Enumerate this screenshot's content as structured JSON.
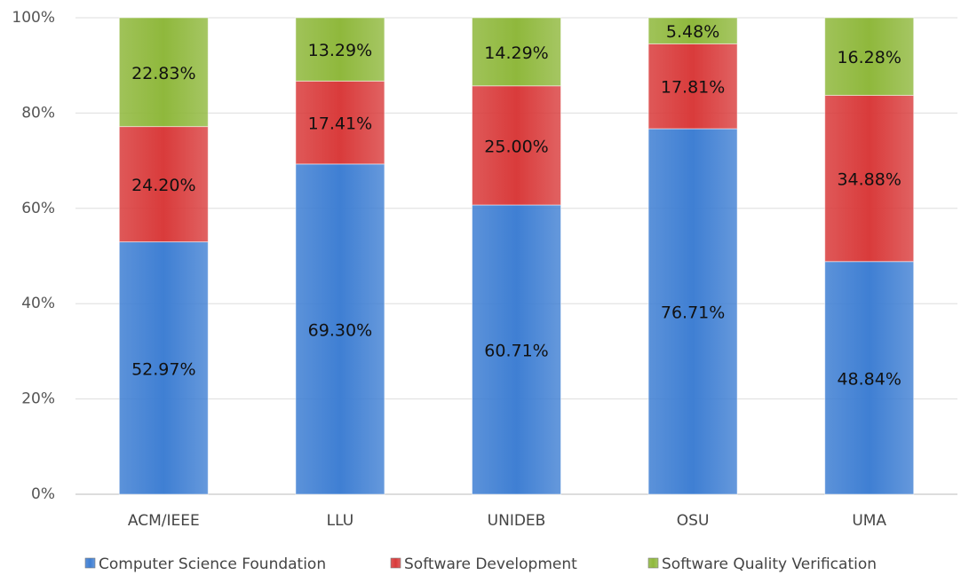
{
  "chart_data": {
    "type": "stacked_bar",
    "categories": [
      "ACM/IEEE",
      "LLU",
      "UNIDEB",
      "OSU",
      "UMA"
    ],
    "series": [
      {
        "name": "Computer Science Foundation",
        "color": "#3f7fd3",
        "values": [
          52.97,
          69.3,
          60.71,
          76.71,
          48.84
        ],
        "value_labels": [
          "52.97%",
          "69.30%",
          "60.71%",
          "76.71%",
          "48.84%"
        ]
      },
      {
        "name": "Software Development",
        "color": "#d93b3b",
        "values": [
          24.2,
          17.41,
          25.0,
          17.81,
          34.88
        ],
        "value_labels": [
          "24.20%",
          "17.41%",
          "25.00%",
          "17.81%",
          "34.88%"
        ]
      },
      {
        "name": "Software Quality Verification",
        "color": "#8fb83c",
        "values": [
          22.83,
          13.29,
          14.29,
          5.48,
          16.28
        ],
        "value_labels": [
          "22.83%",
          "13.29%",
          "14.29%",
          "5.48%",
          "16.28%"
        ]
      }
    ],
    "ylim": [
      0,
      100
    ],
    "yticks": [
      {
        "value": 0,
        "label": "0%"
      },
      {
        "value": 20,
        "label": "20%"
      },
      {
        "value": 40,
        "label": "40%"
      },
      {
        "value": 60,
        "label": "60%"
      },
      {
        "value": 80,
        "label": "80%"
      },
      {
        "value": 100,
        "label": "100%"
      }
    ],
    "grid": true,
    "legend": "bottom"
  }
}
